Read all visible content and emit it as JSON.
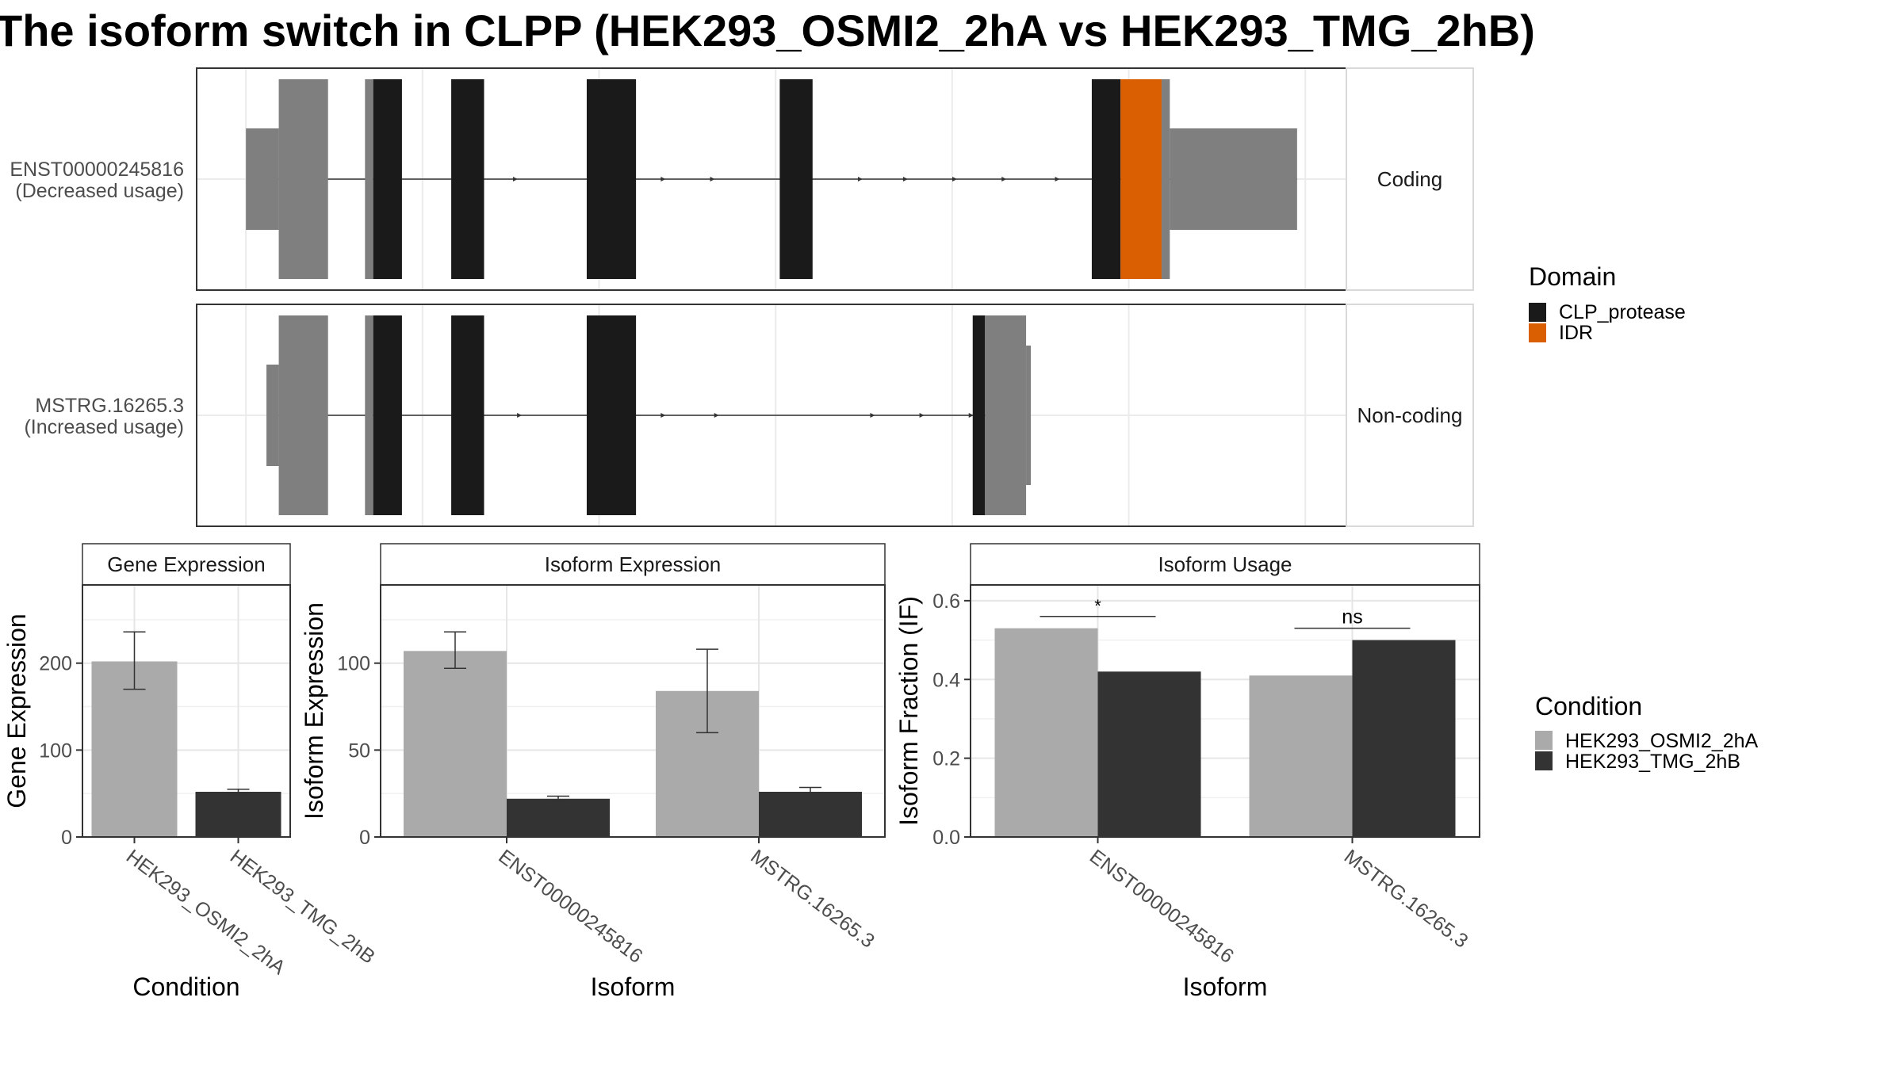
{
  "title": "The isoform switch in CLPP (HEK293_OSMI2_2hA vs HEK293_TMG_2hB)",
  "colors": {
    "clp_protease": "#1a1a1a",
    "idr": "#d95f02",
    "utr": "#7f7f7f",
    "condition_a": "#aaaaaa",
    "condition_b": "#333333"
  },
  "chart_data": [
    {
      "type": "transcript-structure",
      "tracks": [
        {
          "id_label": "ENST00000245816",
          "usage_label": "(Decreased usage)",
          "strip_label": "Coding",
          "exons_5utr_tall": [
            [
              100,
              160
            ]
          ],
          "exons_5utr_short": [
            [
              60,
              100
            ]
          ],
          "exons_cds": [
            [
              215,
              250
            ],
            [
              310,
              350
            ],
            [
              475,
              535
            ],
            [
              710,
              750
            ],
            [
              1090,
              1125
            ]
          ],
          "exons_utr_small": [
            [
              205,
              215
            ]
          ],
          "idr": [
            [
              1125,
              1175
            ]
          ],
          "cds_tail_utr": [
            [
              1175,
              1185
            ]
          ],
          "exons_3utr": [
            [
              1185,
              1340
            ]
          ],
          "arrows": [
            330,
            390,
            570,
            630,
            810,
            865,
            925,
            985,
            1050,
            1110
          ]
        },
        {
          "id_label": "MSTRG.16265.3",
          "usage_label": "(Increased usage)",
          "strip_label": "Non-coding",
          "exons_5utr_tall": [
            [
              100,
              160
            ]
          ],
          "exons_5utr_short": [
            [
              85,
              100
            ]
          ],
          "exons_cds": [
            [
              215,
              250
            ],
            [
              310,
              350
            ],
            [
              475,
              535
            ],
            [
              945,
              960
            ]
          ],
          "exons_utr_small": [
            [
              205,
              215
            ]
          ],
          "exons_3utr": [
            [
              960,
              1010
            ]
          ],
          "arrows": [
            330,
            395,
            570,
            635,
            825,
            885,
            945
          ]
        }
      ],
      "x_grid": [
        60,
        275,
        490,
        705,
        920,
        1135,
        1350
      ],
      "legend": {
        "title": "Domain",
        "items": [
          "CLP_protease",
          "IDR"
        ]
      }
    },
    {
      "type": "bar",
      "strip": "Gene Expression",
      "xlabel": "Condition",
      "ylabel": "Gene Expression",
      "ylim": [
        0,
        290
      ],
      "yticks": [
        0,
        100,
        200
      ],
      "categories": [
        "HEK293_OSMI2_2hA",
        "HEK293_TMG_2hB"
      ],
      "values": [
        202,
        52
      ],
      "errors": [
        [
          170,
          236
        ],
        [
          50,
          55
        ]
      ]
    },
    {
      "type": "bar",
      "strip": "Isoform Expression",
      "xlabel": "Isoform",
      "ylabel": "Isoform Expression",
      "ylim": [
        0,
        145
      ],
      "yticks": [
        0,
        50,
        100
      ],
      "categories": [
        "ENST00000245816",
        "MSTRG.16265.3"
      ],
      "series": [
        {
          "name": "HEK293_OSMI2_2hA",
          "values": [
            107,
            84
          ],
          "errors": [
            [
              97,
              118
            ],
            [
              60,
              108
            ]
          ]
        },
        {
          "name": "HEK293_TMG_2hB",
          "values": [
            22,
            26
          ],
          "errors": [
            [
              21,
              23.5
            ],
            [
              24,
              28.5
            ]
          ]
        }
      ]
    },
    {
      "type": "bar",
      "strip": "Isoform Usage",
      "xlabel": "Isoform",
      "ylabel": "Isoform Fraction (IF)",
      "ylim": [
        0,
        0.64
      ],
      "yticks": [
        0.0,
        0.2,
        0.4,
        0.6
      ],
      "ytick_labels": [
        "0.0",
        "0.2",
        "0.4",
        "0.6"
      ],
      "categories": [
        "ENST00000245816",
        "MSTRG.16265.3"
      ],
      "series": [
        {
          "name": "HEK293_OSMI2_2hA",
          "values": [
            0.53,
            0.41
          ]
        },
        {
          "name": "HEK293_TMG_2hB",
          "values": [
            0.42,
            0.5
          ]
        }
      ],
      "significance": [
        {
          "label": "*",
          "y": 0.56
        },
        {
          "label": "ns",
          "y": 0.53
        }
      ],
      "legend": {
        "title": "Condition",
        "items": [
          "HEK293_OSMI2_2hA",
          "HEK293_TMG_2hB"
        ]
      }
    }
  ]
}
